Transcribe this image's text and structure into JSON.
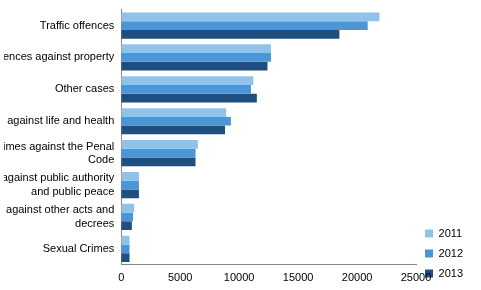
{
  "chart_data": {
    "type": "bar",
    "orientation": "horizontal",
    "categories": [
      "Traffic offences",
      "Offences against property",
      "Other cases",
      "Crimes against life and health",
      "Other crimes against the Penal Code",
      "Crimes against public authority and public peace",
      "Offences against other acts and decrees",
      "Sexual Crimes"
    ],
    "series": [
      {
        "name": "2011",
        "color": "#8fc3ea",
        "values": [
          21900,
          12700,
          11200,
          8900,
          6500,
          1500,
          1100,
          700
        ]
      },
      {
        "name": "2012",
        "color": "#4a96d6",
        "values": [
          20900,
          12700,
          11000,
          9300,
          6300,
          1500,
          1000,
          700
        ]
      },
      {
        "name": "2013",
        "color": "#1f4f7f",
        "values": [
          18500,
          12400,
          11500,
          8800,
          6300,
          1500,
          900,
          700
        ]
      }
    ],
    "xlim": [
      0,
      25000
    ],
    "xticks": [
      0,
      5000,
      10000,
      15000,
      20000,
      25000
    ],
    "grid": false,
    "legend": "right"
  }
}
